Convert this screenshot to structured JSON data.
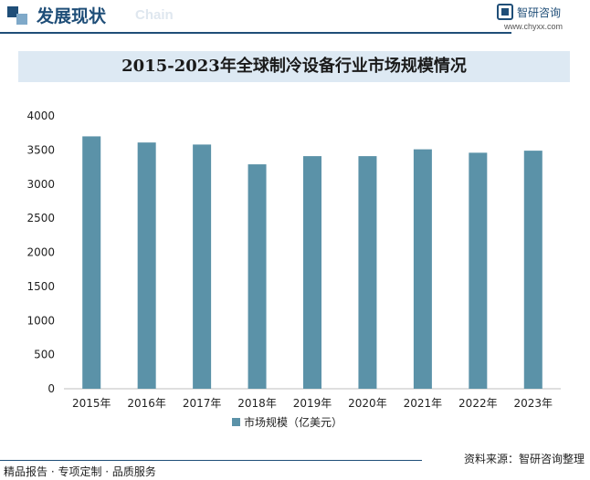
{
  "header": {
    "title": "发展现状",
    "subtitle": "Chain",
    "brand_name": "智研咨询",
    "brand_url": "www.chyxx.com"
  },
  "colors": {
    "bar": "#5b92a8",
    "accent": "#1f4e78",
    "title_band": "#dde9f3"
  },
  "chart_data": {
    "type": "bar",
    "title": "2015-2023年全球制冷设备行业市场规模情况",
    "categories": [
      "2015年",
      "2016年",
      "2017年",
      "2018年",
      "2019年",
      "2020年",
      "2021年",
      "2022年",
      "2023年"
    ],
    "series": [
      {
        "name": "市场规模（亿美元）",
        "values": [
          3700,
          3610,
          3580,
          3290,
          3410,
          3410,
          3510,
          3460,
          3490
        ]
      }
    ],
    "ylim": [
      0,
      4000
    ],
    "yticks": [
      "0",
      "500",
      "1000",
      "1500",
      "2000",
      "2500",
      "3000",
      "3500",
      "4000"
    ],
    "grid": false,
    "legend": "bottom"
  },
  "footer": {
    "left": "精品报告 · 专项定制 · 品质服务",
    "right": "资料来源：智研咨询整理"
  }
}
